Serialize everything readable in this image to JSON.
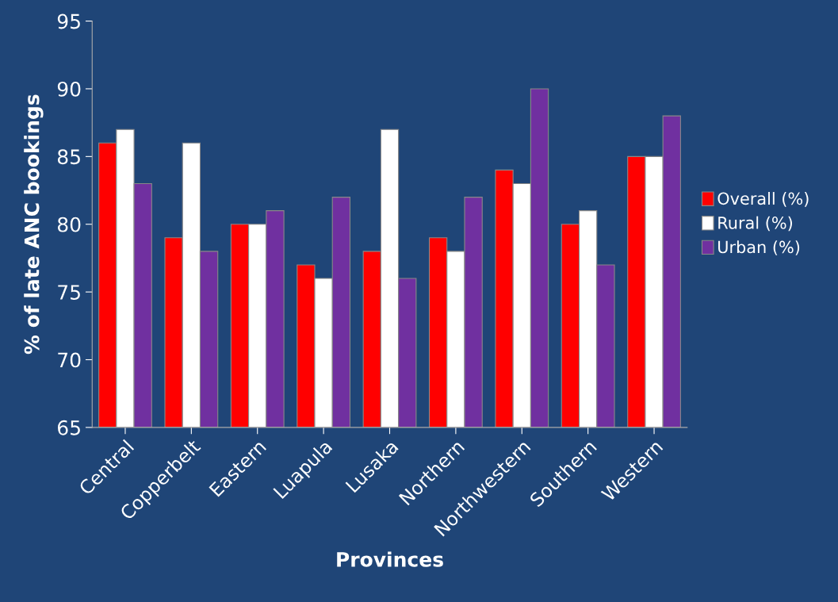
{
  "chart_data": {
    "type": "bar",
    "xlabel": "Provinces",
    "ylabel": "% of late ANC bookings",
    "categories": [
      "Central",
      "Copperbelt",
      "Eastern",
      "Luapula",
      "Lusaka",
      "Northern",
      "Northwestern",
      "Southern",
      "Western"
    ],
    "series": [
      {
        "name": "Overall (%)",
        "color": "#ff0000",
        "values": [
          86,
          79,
          80,
          77,
          78,
          79,
          84,
          80,
          85
        ]
      },
      {
        "name": "Rural (%)",
        "color": "#ffffff",
        "values": [
          87,
          86,
          80,
          76,
          87,
          78,
          83,
          81,
          85
        ]
      },
      {
        "name": "Urban (%)",
        "color": "#7030a0",
        "values": [
          83,
          78,
          81,
          82,
          76,
          82,
          90,
          77,
          88
        ]
      }
    ],
    "ylim": [
      65,
      95
    ],
    "yticks": [
      65,
      70,
      75,
      80,
      85,
      90,
      95
    ],
    "grid": false,
    "legend": "right"
  }
}
